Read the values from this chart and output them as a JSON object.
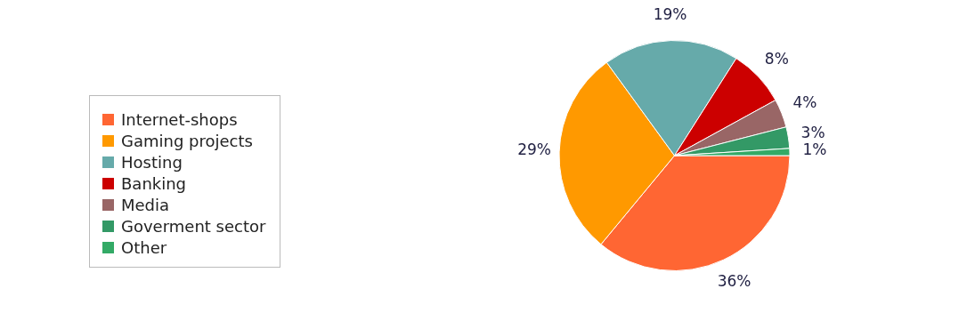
{
  "chart_data": {
    "type": "pie",
    "categories": [
      "Internet-shops",
      "Gaming projects",
      "Hosting",
      "Banking",
      "Media",
      "Goverment sector",
      "Other"
    ],
    "values": [
      36,
      29,
      19,
      8,
      4,
      3,
      1
    ],
    "colors": [
      "#ff6633",
      "#ff9900",
      "#66aaaa",
      "#cc0000",
      "#996666",
      "#339966",
      "#33aa66"
    ],
    "value_labels": [
      "36%",
      "29%",
      "19%",
      "8%",
      "4%",
      "3%",
      "1%"
    ],
    "legend": "left"
  }
}
